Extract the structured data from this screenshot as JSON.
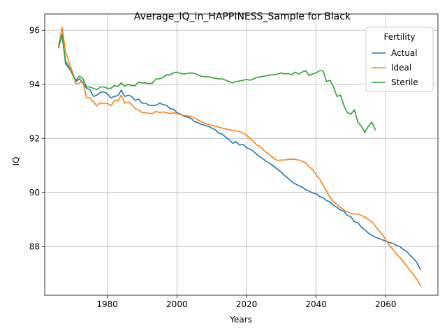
{
  "chart_data": {
    "type": "line",
    "title": "Average_IQ_in_HAPPINESS_Sample for Black",
    "xlabel": "Years",
    "ylabel": "IQ",
    "xlim": [
      1962,
      2075
    ],
    "ylim": [
      86.2,
      96.6
    ],
    "xticks": [
      1980,
      2000,
      2020,
      2040,
      2060
    ],
    "yticks": [
      88,
      90,
      92,
      94,
      96
    ],
    "grid": true,
    "legend": {
      "title": "Fertility",
      "location": "top-right"
    },
    "series": [
      {
        "name": "Actual",
        "color": "#1f77b4",
        "x": [
          1966,
          1967,
          1968,
          1969,
          1970,
          1971,
          1972,
          1973,
          1974,
          1975,
          1976,
          1977,
          1978,
          1979,
          1980,
          1981,
          1982,
          1983,
          1984,
          1985,
          1986,
          1987,
          1988,
          1989,
          1990,
          1991,
          1992,
          1993,
          1994,
          1995,
          1996,
          1997,
          1998,
          1999,
          2000,
          2001,
          2002,
          2003,
          2004,
          2005,
          2006,
          2007,
          2008,
          2009,
          2010,
          2011,
          2012,
          2013,
          2014,
          2015,
          2016,
          2017,
          2018,
          2019,
          2020,
          2021,
          2022,
          2023,
          2024,
          2025,
          2026,
          2027,
          2028,
          2029,
          2030,
          2031,
          2032,
          2033,
          2034,
          2035,
          2036,
          2037,
          2038,
          2039,
          2040,
          2041,
          2042,
          2043,
          2044,
          2045,
          2046,
          2047,
          2048,
          2049,
          2050,
          2051,
          2052,
          2053,
          2054,
          2055,
          2056,
          2057,
          2058,
          2059,
          2060,
          2061,
          2062,
          2063,
          2064,
          2065,
          2066,
          2067,
          2068,
          2069,
          2070
        ],
        "values": [
          95.35,
          95.85,
          94.75,
          94.6,
          94.4,
          94.1,
          94.2,
          94.05,
          93.85,
          93.8,
          93.55,
          93.6,
          93.7,
          93.72,
          93.65,
          93.5,
          93.55,
          93.58,
          93.78,
          93.55,
          93.6,
          93.55,
          93.4,
          93.45,
          93.3,
          93.3,
          93.22,
          93.22,
          93.22,
          93.3,
          93.25,
          93.22,
          93.1,
          93.08,
          92.95,
          92.9,
          92.82,
          92.78,
          92.75,
          92.62,
          92.58,
          92.52,
          92.48,
          92.45,
          92.38,
          92.32,
          92.2,
          92.15,
          92.05,
          91.95,
          91.82,
          91.88,
          91.75,
          91.78,
          91.65,
          91.6,
          91.52,
          91.4,
          91.3,
          91.22,
          91.12,
          91.05,
          90.95,
          90.85,
          90.75,
          90.62,
          90.52,
          90.4,
          90.32,
          90.25,
          90.2,
          90.1,
          90.05,
          89.98,
          89.95,
          89.85,
          89.8,
          89.7,
          89.65,
          89.52,
          89.45,
          89.35,
          89.3,
          89.15,
          89.1,
          88.92,
          88.88,
          88.72,
          88.62,
          88.5,
          88.42,
          88.35,
          88.3,
          88.25,
          88.2,
          88.15,
          88.12,
          88.05,
          88.0,
          87.9,
          87.82,
          87.68,
          87.55,
          87.4,
          87.15
        ]
      },
      {
        "name": "Ideal",
        "color": "#ff7f0e",
        "x": [
          1966,
          1967,
          1968,
          1969,
          1970,
          1971,
          1972,
          1973,
          1974,
          1975,
          1976,
          1977,
          1978,
          1979,
          1980,
          1981,
          1982,
          1983,
          1984,
          1985,
          1986,
          1987,
          1988,
          1989,
          1990,
          1991,
          1992,
          1993,
          1994,
          1995,
          1996,
          1997,
          1998,
          1999,
          2000,
          2001,
          2002,
          2003,
          2004,
          2005,
          2006,
          2007,
          2008,
          2009,
          2010,
          2011,
          2012,
          2013,
          2014,
          2015,
          2016,
          2017,
          2018,
          2019,
          2020,
          2021,
          2022,
          2023,
          2024,
          2025,
          2026,
          2027,
          2028,
          2029,
          2030,
          2031,
          2032,
          2033,
          2034,
          2035,
          2036,
          2037,
          2038,
          2039,
          2040,
          2041,
          2042,
          2043,
          2044,
          2045,
          2046,
          2047,
          2048,
          2049,
          2050,
          2051,
          2052,
          2053,
          2054,
          2055,
          2056,
          2057,
          2058,
          2059,
          2060,
          2061,
          2062,
          2063,
          2064,
          2065,
          2066,
          2067,
          2068,
          2069,
          2070
        ],
        "values": [
          95.4,
          96.1,
          95.2,
          94.8,
          94.45,
          94.0,
          94.05,
          94.1,
          93.5,
          93.5,
          93.35,
          93.2,
          93.32,
          93.28,
          93.3,
          93.2,
          93.4,
          93.38,
          93.6,
          93.3,
          93.35,
          93.25,
          93.1,
          93.05,
          92.95,
          92.95,
          92.92,
          92.92,
          93.0,
          92.95,
          92.98,
          92.95,
          92.92,
          92.95,
          92.92,
          92.88,
          92.85,
          92.83,
          92.82,
          92.75,
          92.68,
          92.62,
          92.55,
          92.52,
          92.48,
          92.45,
          92.42,
          92.38,
          92.35,
          92.32,
          92.3,
          92.28,
          92.25,
          92.2,
          92.12,
          92.0,
          91.88,
          91.75,
          91.7,
          91.55,
          91.45,
          91.35,
          91.25,
          91.18,
          91.2,
          91.2,
          91.22,
          91.23,
          91.22,
          91.2,
          91.15,
          91.1,
          90.95,
          90.85,
          90.65,
          90.5,
          90.28,
          90.05,
          89.82,
          89.65,
          89.55,
          89.45,
          89.35,
          89.28,
          89.22,
          89.2,
          89.2,
          89.15,
          89.1,
          89.0,
          88.92,
          88.75,
          88.6,
          88.45,
          88.25,
          88.05,
          87.9,
          87.75,
          87.6,
          87.45,
          87.28,
          87.12,
          86.95,
          86.78,
          86.55
        ]
      },
      {
        "name": "Sterile",
        "color": "#2ca02c",
        "x": [
          1966,
          1967,
          1968,
          1969,
          1970,
          1971,
          1972,
          1973,
          1974,
          1975,
          1976,
          1977,
          1978,
          1979,
          1980,
          1981,
          1982,
          1983,
          1984,
          1985,
          1986,
          1987,
          1988,
          1989,
          1990,
          1991,
          1992,
          1993,
          1994,
          1995,
          1996,
          1997,
          1998,
          1999,
          2000,
          2001,
          2002,
          2003,
          2004,
          2005,
          2006,
          2007,
          2008,
          2009,
          2010,
          2011,
          2012,
          2013,
          2014,
          2015,
          2016,
          2017,
          2018,
          2019,
          2020,
          2021,
          2022,
          2023,
          2024,
          2025,
          2026,
          2027,
          2028,
          2029,
          2030,
          2031,
          2032,
          2033,
          2034,
          2035,
          2036,
          2037,
          2038,
          2039,
          2040,
          2041,
          2042,
          2043,
          2044,
          2045,
          2046,
          2047,
          2048,
          2049,
          2050,
          2051,
          2052,
          2053,
          2054,
          2055,
          2056,
          2057
        ],
        "values": [
          95.45,
          95.8,
          94.85,
          94.65,
          94.35,
          94.15,
          94.3,
          94.2,
          93.9,
          93.9,
          93.85,
          93.8,
          93.9,
          93.9,
          93.85,
          93.85,
          93.95,
          93.92,
          94.05,
          93.92,
          94.0,
          93.95,
          93.95,
          94.08,
          94.05,
          94.05,
          94.02,
          94.05,
          94.2,
          94.2,
          94.25,
          94.35,
          94.35,
          94.42,
          94.45,
          94.4,
          94.38,
          94.4,
          94.42,
          94.4,
          94.35,
          94.3,
          94.28,
          94.28,
          94.25,
          94.22,
          94.2,
          94.2,
          94.15,
          94.1,
          94.05,
          94.1,
          94.12,
          94.15,
          94.18,
          94.15,
          94.2,
          94.25,
          94.28,
          94.3,
          94.32,
          94.35,
          94.35,
          94.38,
          94.42,
          94.38,
          94.4,
          94.35,
          94.45,
          94.38,
          94.45,
          94.5,
          94.32,
          94.38,
          94.42,
          94.5,
          94.5,
          94.1,
          94.15,
          93.9,
          93.55,
          93.6,
          93.2,
          92.95,
          92.9,
          93.05,
          92.6,
          92.45,
          92.22,
          92.45,
          92.6,
          92.32
        ]
      }
    ]
  }
}
